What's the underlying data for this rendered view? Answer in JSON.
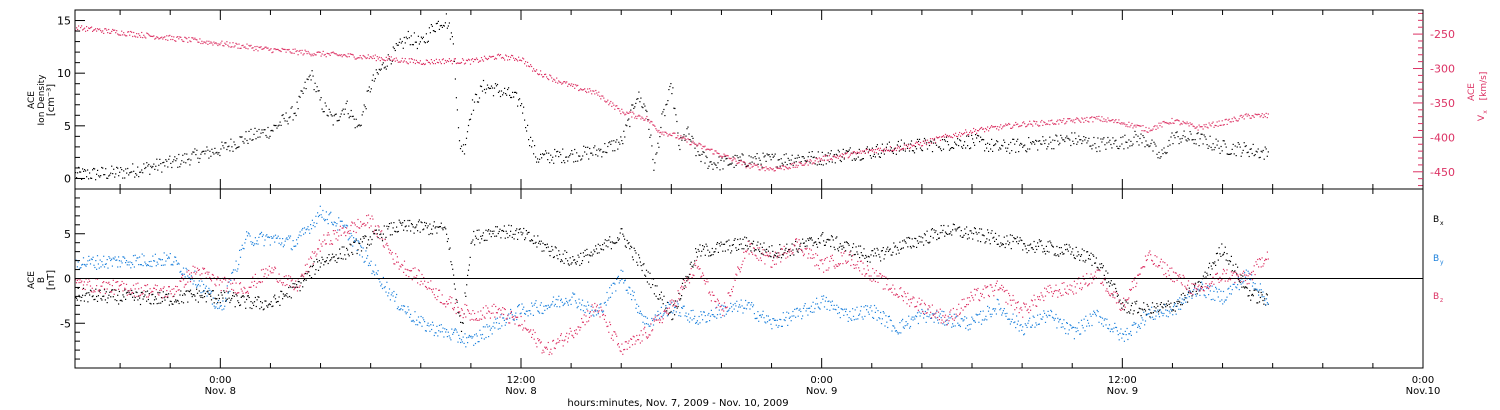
{
  "figure": {
    "x_title": "hours:minutes, Nov.  7, 2009 - Nov. 10, 2009",
    "x_ticks": [
      {
        "t": 0,
        "time": "0:00",
        "date": "Nov. 8"
      },
      {
        "t": 12,
        "time": "12:00",
        "date": "Nov. 8"
      },
      {
        "t": 24,
        "time": "0:00",
        "date": "Nov. 9"
      },
      {
        "t": 36,
        "time": "12:00",
        "date": "Nov. 9"
      },
      {
        "t": 48,
        "time": "0:00",
        "date": "Nov.10"
      }
    ],
    "x_range_hours": [
      -5.8,
      48
    ],
    "x_minor_step_hours": 2,
    "time_origin": "Nov. 8 0:00"
  },
  "colors": {
    "density": "#000000",
    "velocity": "#dc3264",
    "bx": "#000000",
    "by": "#1e82dc",
    "bz": "#dc3264",
    "axis": "#000000"
  },
  "chart_data": [
    {
      "type": "scatter",
      "panel": "top",
      "left_axis": {
        "label_lines": [
          "ACE",
          "Ion Density"
        ],
        "units": "[cm⁻³]",
        "ylim": [
          -1,
          16
        ],
        "ticks": [
          0,
          5,
          10,
          15
        ]
      },
      "right_axis": {
        "label_lines": [
          "ACE",
          "V"
        ],
        "label_sub": "x",
        "units": "[km/s]",
        "ylim": [
          -475,
          -215
        ],
        "ticks": [
          -250,
          -300,
          -350,
          -400,
          -450
        ],
        "color": "#dc3264"
      },
      "series": [
        {
          "key": "density",
          "axis": "left",
          "x": [
            -5.8,
            -4,
            -2,
            -1,
            0,
            1,
            2,
            3,
            3.3,
            3.6,
            4,
            4.5,
            5,
            5.5,
            6,
            6.5,
            7,
            7.5,
            8,
            8.5,
            9,
            9.3,
            9.5,
            9.7,
            10,
            10.5,
            11,
            11.5,
            12,
            12.3,
            12.6,
            13,
            14,
            15,
            16,
            16.3,
            16.6,
            17,
            17.3,
            17.6,
            18,
            18.3,
            18.6,
            19,
            19.5,
            20,
            21,
            22,
            23,
            24,
            25,
            26,
            27,
            28,
            29,
            30,
            31,
            32,
            33,
            34,
            35,
            36,
            36.5,
            37,
            37.5,
            38,
            39,
            40,
            41,
            41.8
          ],
          "y": [
            0.4,
            0.6,
            1.5,
            2.2,
            2.8,
            3.9,
            4.6,
            6.5,
            8.3,
            10,
            7.2,
            5.5,
            7,
            4.8,
            9,
            10.8,
            12.2,
            13.5,
            12.8,
            14.5,
            15.2,
            12.8,
            3.5,
            2.8,
            6.8,
            8.8,
            8.5,
            8.0,
            7.2,
            4.0,
            2.0,
            2.1,
            2.3,
            2.6,
            3.5,
            5.5,
            8.0,
            6.5,
            1.0,
            5.5,
            8.8,
            3.0,
            4.5,
            2.5,
            1.5,
            1.5,
            1.8,
            1.8,
            2.0,
            2.0,
            2.4,
            2.6,
            3.0,
            3.2,
            3.4,
            3.6,
            3.0,
            3.2,
            3.5,
            3.8,
            3.3,
            3.5,
            3.9,
            3.6,
            2.0,
            4.0,
            3.8,
            3.0,
            2.8,
            2.4
          ]
        },
        {
          "key": "velocity",
          "axis": "right",
          "x": [
            -5.8,
            -4,
            -2,
            0,
            2,
            4,
            6,
            8,
            9,
            10,
            11,
            12,
            12.5,
            13,
            14,
            15,
            16,
            17,
            17.5,
            18,
            19,
            20,
            21,
            22,
            23,
            24,
            25,
            26,
            27,
            28,
            29,
            30,
            31,
            32,
            33,
            34,
            35,
            36,
            37,
            38,
            39,
            40,
            41,
            41.8
          ],
          "y": [
            -240,
            -247,
            -255,
            -263,
            -272,
            -278,
            -283,
            -290,
            -288,
            -289,
            -282,
            -285,
            -302,
            -310,
            -325,
            -335,
            -362,
            -372,
            -390,
            -395,
            -410,
            -425,
            -440,
            -445,
            -440,
            -430,
            -425,
            -418,
            -415,
            -408,
            -398,
            -390,
            -385,
            -380,
            -378,
            -375,
            -372,
            -378,
            -388,
            -375,
            -385,
            -378,
            -368,
            -368
          ]
        }
      ]
    },
    {
      "type": "scatter",
      "panel": "bottom",
      "left_axis": {
        "label_lines": [
          "ACE",
          "B"
        ],
        "units": "[nT]",
        "ylim": [
          -10,
          10
        ],
        "ticks": [
          5,
          0,
          -5
        ],
        "zero_line": true
      },
      "series": [
        {
          "name": "B",
          "sub": "x",
          "key": "bx",
          "x": [
            -5.8,
            -4,
            -2,
            -1,
            0,
            1,
            2,
            3,
            3.5,
            4,
            5,
            6,
            7,
            8,
            9,
            9.3,
            9.6,
            10,
            11,
            12,
            13,
            14,
            15,
            16,
            17,
            18,
            19,
            20,
            21,
            22,
            23,
            24,
            25,
            26,
            27,
            28,
            29,
            30,
            31,
            32,
            33,
            34,
            35,
            36,
            37,
            38,
            39,
            40,
            41,
            41.8
          ],
          "y": [
            -1.8,
            -2.0,
            -2.2,
            -1.8,
            -2.0,
            -2.6,
            -2.8,
            -1.0,
            0.5,
            2.0,
            3.0,
            4.5,
            5.8,
            5.8,
            5.5,
            0.0,
            -6.0,
            4.5,
            5.5,
            5.0,
            3.5,
            2.0,
            3.0,
            5.0,
            0.5,
            -4.0,
            3.0,
            3.5,
            4.0,
            3.0,
            3.5,
            4.5,
            3.5,
            2.5,
            3.5,
            4.5,
            5.5,
            5.0,
            4.5,
            3.8,
            3.5,
            3.0,
            2.0,
            -3.0,
            -3.5,
            -3.0,
            -1.0,
            3.5,
            -1.5,
            -2.5
          ]
        },
        {
          "name": "B",
          "sub": "y",
          "key": "by",
          "x": [
            -5.8,
            -4,
            -2,
            -1,
            0,
            1,
            2,
            3,
            4,
            5,
            6,
            7,
            8,
            9,
            10,
            11,
            12,
            13,
            14,
            15,
            16,
            17,
            18,
            19,
            20,
            21,
            22,
            23,
            24,
            25,
            26,
            27,
            28,
            29,
            30,
            31,
            32,
            33,
            34,
            35,
            36,
            37,
            38,
            39,
            40,
            41,
            41.8
          ],
          "y": [
            1.8,
            2.0,
            2.2,
            0.0,
            -3.5,
            4.5,
            4.5,
            4.0,
            7.5,
            5.5,
            1.5,
            -2.5,
            -5.0,
            -6.0,
            -7.0,
            -5.0,
            -3.5,
            -3.0,
            -2.0,
            -4.0,
            0.5,
            -5.0,
            -3.0,
            -4.5,
            -3.5,
            -3.0,
            -5.0,
            -4.0,
            -2.5,
            -4.0,
            -3.5,
            -5.5,
            -4.0,
            -4.5,
            -5.0,
            -3.0,
            -5.5,
            -4.0,
            -6.0,
            -4.0,
            -6.5,
            -4.0,
            -3.5,
            -1.0,
            -2.0,
            0.5,
            -2.5
          ]
        },
        {
          "name": "B",
          "sub": "z",
          "key": "bz",
          "x": [
            -5.8,
            -4,
            -2,
            -1,
            0,
            1,
            2,
            3,
            4,
            5,
            6,
            7,
            8,
            9,
            10,
            11,
            12,
            13,
            14,
            15,
            16,
            17,
            18,
            19,
            20,
            21,
            22,
            23,
            24,
            25,
            26,
            27,
            28,
            29,
            30,
            31,
            32,
            33,
            34,
            35,
            36,
            37,
            38,
            39,
            40,
            41,
            41.8
          ],
          "y": [
            -0.5,
            -1.0,
            -1.5,
            1.0,
            -0.5,
            -1.0,
            1.0,
            -1.0,
            4.0,
            5.5,
            6.5,
            2.0,
            0.0,
            -2.5,
            -4.0,
            -3.5,
            -5.0,
            -8.0,
            -6.0,
            -3.0,
            -8.0,
            -6.0,
            -3.0,
            1.5,
            -4.0,
            3.5,
            2.0,
            4.0,
            1.5,
            2.5,
            0.5,
            -1.5,
            -3.0,
            -4.5,
            -2.0,
            -1.0,
            -3.5,
            -1.5,
            -1.0,
            0.5,
            -3.0,
            2.5,
            0.5,
            -1.5,
            0.5,
            0.0,
            3.0
          ]
        }
      ],
      "legend": "right"
    }
  ]
}
